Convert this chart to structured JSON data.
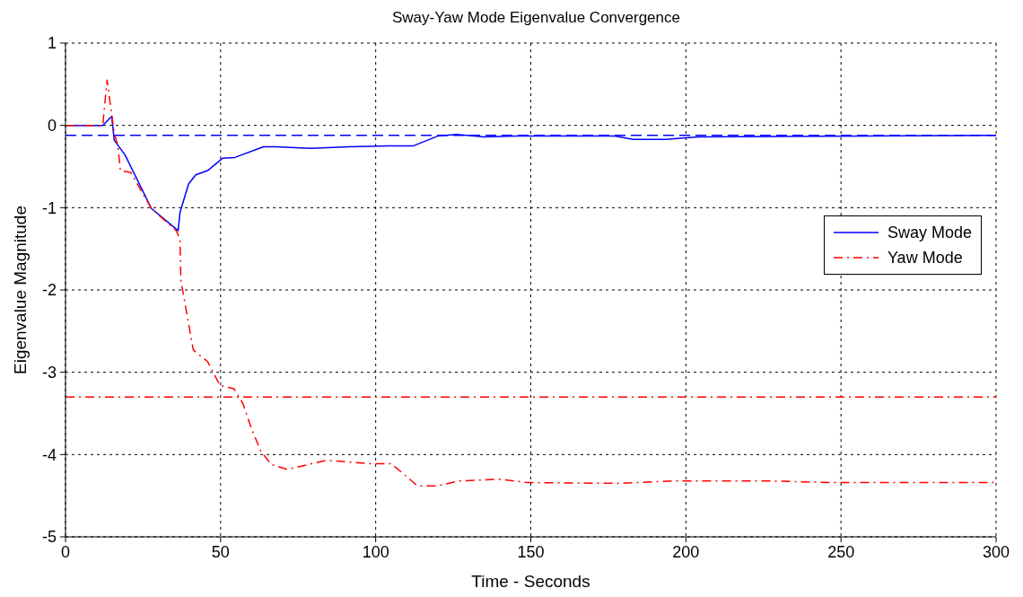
{
  "chart_data": {
    "type": "line",
    "title": "Sway-Yaw Mode Eigenvalue Convergence",
    "xlabel": "Time - Seconds",
    "ylabel": "Eigenvalue Magnitude",
    "xlim": [
      0,
      300
    ],
    "xticks": [
      0,
      50,
      100,
      150,
      200,
      250,
      300
    ],
    "ylim": [
      -5,
      1
    ],
    "yticks": [
      -5,
      -4,
      -3,
      -2,
      -1,
      0,
      1
    ],
    "grid": true,
    "legend": "right",
    "marker": "none",
    "series": [
      {
        "name": "Sway Mode",
        "color": "#0000ff",
        "line_style": "solid",
        "x": [
          0,
          12,
          14.9,
          15.7,
          19.2,
          27.7,
          35.7,
          36.3,
          36.9,
          39.7,
          42,
          45.8,
          50.6,
          54.6,
          63.8,
          67.8,
          79,
          91.5,
          104,
          112,
          120,
          126,
          135,
          145.6,
          177,
          183,
          193.6,
          204,
          300
        ],
        "values": [
          0,
          0,
          0.11,
          -0.18,
          -0.36,
          -1.01,
          -1.26,
          -1.28,
          -1.06,
          -0.71,
          -0.6,
          -0.55,
          -0.4,
          -0.39,
          -0.26,
          -0.26,
          -0.28,
          -0.26,
          -0.25,
          -0.25,
          -0.13,
          -0.11,
          -0.14,
          -0.13,
          -0.13,
          -0.17,
          -0.17,
          -0.14,
          -0.12
        ]
      },
      {
        "name": "Yaw Mode",
        "color": "#ff0000",
        "line_style": "dashdot",
        "x": [
          0,
          12,
          13.4,
          15.7,
          16.9,
          17.7,
          21,
          27.7,
          35.7,
          36.9,
          37.2,
          38.6,
          41.2,
          45.8,
          49.8,
          54.3,
          57.2,
          60,
          63,
          66.3,
          71.5,
          84,
          98.4,
          105,
          113.5,
          120,
          127,
          140,
          148.7,
          178,
          196.5,
          226,
          246,
          300
        ],
        "values": [
          0,
          0,
          0.55,
          -0.09,
          -0.25,
          -0.55,
          -0.57,
          -1.01,
          -1.28,
          -1.38,
          -1.89,
          -2.18,
          -2.73,
          -2.87,
          -3.16,
          -3.2,
          -3.38,
          -3.69,
          -3.96,
          -4.12,
          -4.18,
          -4.07,
          -4.11,
          -4.11,
          -4.38,
          -4.38,
          -4.32,
          -4.3,
          -4.34,
          -4.35,
          -4.32,
          -4.32,
          -4.34,
          -4.34
        ]
      }
    ],
    "ref_lines": [
      {
        "axis": "y",
        "value": -0.12,
        "color": "#0000ff",
        "line_style": "dashed"
      },
      {
        "axis": "y",
        "value": -3.3,
        "color": "#ff0000",
        "line_style": "dashdot"
      }
    ]
  }
}
